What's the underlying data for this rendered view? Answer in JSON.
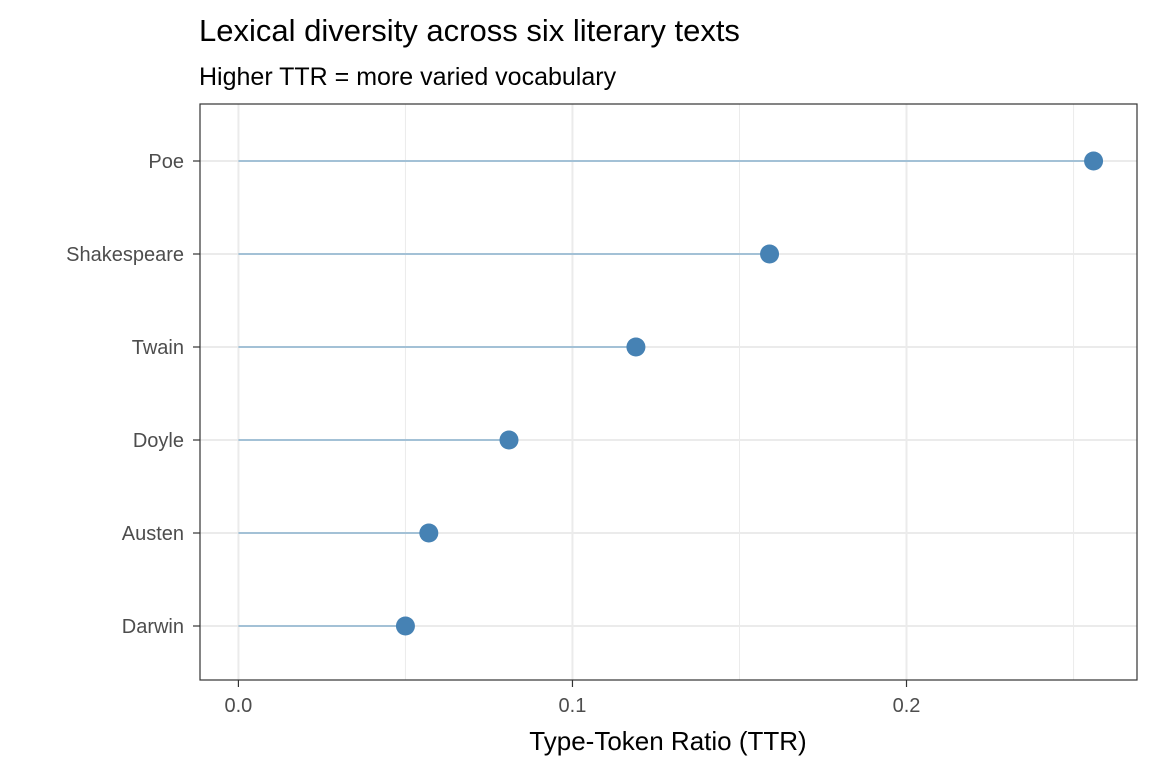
{
  "chart_data": {
    "type": "lollipop",
    "title": "Lexical diversity across six literary texts",
    "subtitle": "Higher TTR = more varied vocabulary",
    "xlabel": "Type-Token Ratio (TTR)",
    "ylabel": "",
    "categories": [
      "Poe",
      "Shakespeare",
      "Twain",
      "Doyle",
      "Austen",
      "Darwin"
    ],
    "values": [
      0.256,
      0.159,
      0.119,
      0.081,
      0.057,
      0.05
    ],
    "xlim": [
      -0.0115,
      0.269
    ],
    "x_ticks": [
      0.0,
      0.1,
      0.2
    ],
    "x_tick_labels": [
      "0.0",
      "0.1",
      "0.2"
    ],
    "grid": true,
    "legend": "none",
    "colors": {
      "point": "#4682b4",
      "segment": "#a3c1d6",
      "grid": "#ebebeb",
      "panel_border": "#333333"
    }
  }
}
